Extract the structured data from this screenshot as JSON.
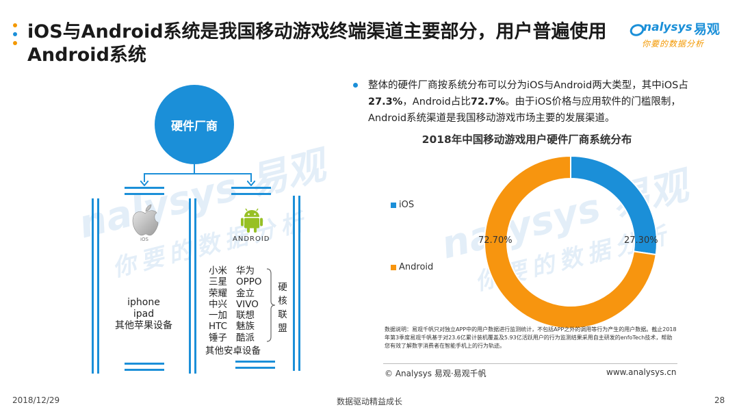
{
  "slide": {
    "title": "iOS与Android系统是我国移动游戏终端渠道主要部分，用户普遍使用Android系统",
    "logo_brand": "nalysys",
    "logo_cn": "易观",
    "logo_tagline": "你要的数据分析",
    "watermark_brand": "nalysys 易观",
    "watermark_tagline": "你要的数据分析"
  },
  "diagram": {
    "root_label": "硬件厂商",
    "ios_icon_caption": "iOS",
    "android_icon_caption": "ANDROID",
    "apple_devices": [
      "iphone",
      "ipad",
      "其他苹果设备"
    ],
    "android_brands_left": [
      "小米",
      "三星",
      "荣耀",
      "中兴",
      "一加",
      "HTC",
      "锤子"
    ],
    "android_brands_right": [
      "华为",
      "OPPO",
      "金立",
      "VIVO",
      "联想",
      "魅族",
      "酷派"
    ],
    "core_alliance_label": [
      "硬",
      "核",
      "联",
      "盟"
    ],
    "android_other": "其他安卓设备"
  },
  "summary": {
    "p1": "整体的硬件厂商按系统分布可以分为iOS与Android两大类型，其中iOS占",
    "ios_pct": "27.3%",
    "p2": "，Android占比",
    "android_pct": "72.7%",
    "p3": "。由于iOS价格与应用软件的门槛限制，Android系统渠道是我国移动游戏市场主要的发展渠道。"
  },
  "chart_data": {
    "type": "pie",
    "title": "2018年中国移动游戏用户硬件厂商系统分布",
    "categories": [
      "iOS",
      "Android"
    ],
    "values": [
      27.3,
      72.7
    ],
    "value_labels": [
      "27.30%",
      "72.70%"
    ],
    "colors": [
      "#1b8fd8",
      "#f7950f"
    ],
    "donut": true,
    "legend_position": "left"
  },
  "note": "数据说明：易观千帆只对独立APP中的用户数据进行监测统计，不包括APP之外的调用等行为产生的用户数据。截止2018年第3季度易观千帆基于对23.6亿累计装机覆盖及5.93亿活跃用户的行为监测结果采用自主研发的enfoTech技术，帮助您有效了解数字消费者在智能手机上的行为轨迹。",
  "source_left": "© Analysys 易观·易观千帆",
  "source_right": "www.analysys.cn",
  "footer": {
    "date": "2018/12/29",
    "slogan": "数据驱动精益成长",
    "page": "28"
  }
}
